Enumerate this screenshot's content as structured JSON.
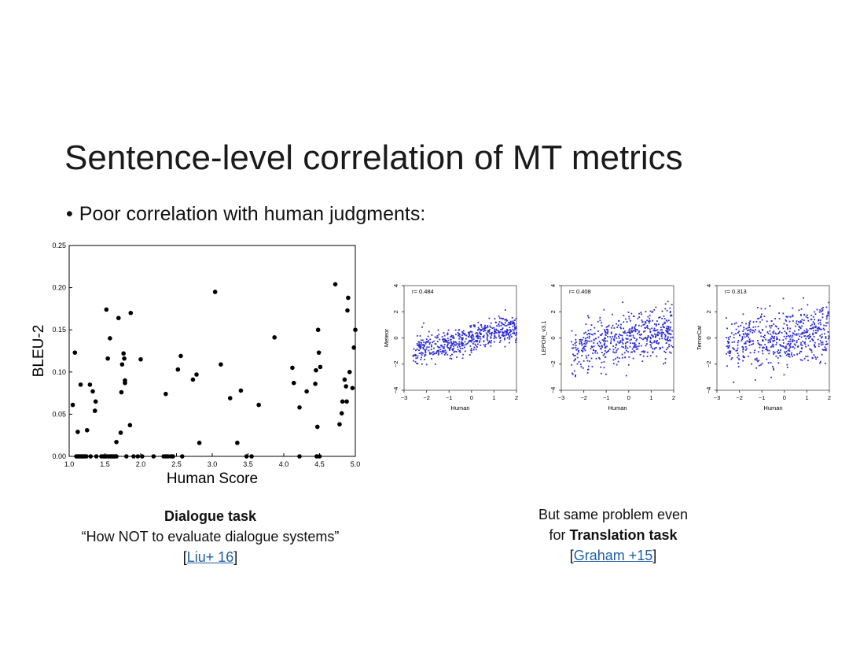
{
  "slide": {
    "title": "Sentence-level correlation of MT metrics",
    "bullet": "Poor correlation with human judgments:"
  },
  "captions": {
    "left": {
      "bold": "Dialogue task",
      "quote": "“How NOT to evaluate dialogue systems”",
      "ref_open": "[",
      "ref_link": "Liu+ 16",
      "ref_close": "]"
    },
    "right": {
      "line1": "But same problem even",
      "line2_prefix": "for ",
      "line2_bold": "Translation task",
      "ref_open": "[",
      "ref_link": "Graham +15",
      "ref_close": "]"
    }
  },
  "chart_data": [
    {
      "type": "scatter",
      "title": "",
      "xlabel": "Human Score",
      "ylabel": "BLEU-2",
      "xlim": [
        1.0,
        5.0
      ],
      "ylim": [
        0.0,
        0.25
      ],
      "xticks": [
        "1.0",
        "1.5",
        "2.0",
        "2.5",
        "3.0",
        "3.5",
        "4.0",
        "4.5",
        "5.0"
      ],
      "yticks": [
        "0.00",
        "0.05",
        "0.10",
        "0.15",
        "0.20",
        "0.25"
      ],
      "color": "#000000",
      "points": [
        [
          1.05,
          0.061
        ],
        [
          1.08,
          0.123
        ],
        [
          1.12,
          0.029
        ],
        [
          1.16,
          0.085
        ],
        [
          1.25,
          0.031
        ],
        [
          1.29,
          0.085
        ],
        [
          1.33,
          0.077
        ],
        [
          1.36,
          0.054
        ],
        [
          1.37,
          0.065
        ],
        [
          1.52,
          0.174
        ],
        [
          1.54,
          0.116
        ],
        [
          1.57,
          0.14
        ],
        [
          1.66,
          0.017
        ],
        [
          1.69,
          0.164
        ],
        [
          1.72,
          0.028
        ],
        [
          1.73,
          0.076
        ],
        [
          1.74,
          0.109
        ],
        [
          1.76,
          0.122
        ],
        [
          1.77,
          0.116
        ],
        [
          1.78,
          0.09
        ],
        [
          1.78,
          0.087
        ],
        [
          1.85,
          0.037
        ],
        [
          1.86,
          0.17
        ],
        [
          2.0,
          0.115
        ],
        [
          2.35,
          0.074
        ],
        [
          2.52,
          0.103
        ],
        [
          2.56,
          0.119
        ],
        [
          2.73,
          0.091
        ],
        [
          2.78,
          0.097
        ],
        [
          2.82,
          0.016
        ],
        [
          3.04,
          0.195
        ],
        [
          3.12,
          0.109
        ],
        [
          3.25,
          0.069
        ],
        [
          3.35,
          0.016
        ],
        [
          3.4,
          0.078
        ],
        [
          3.65,
          0.061
        ],
        [
          3.87,
          0.141
        ],
        [
          4.12,
          0.105
        ],
        [
          4.14,
          0.087
        ],
        [
          4.22,
          0.058
        ],
        [
          4.32,
          0.077
        ],
        [
          4.44,
          0.086
        ],
        [
          4.45,
          0.102
        ],
        [
          4.47,
          0.035
        ],
        [
          4.48,
          0.15
        ],
        [
          4.49,
          0.123
        ],
        [
          4.51,
          0.106
        ],
        [
          4.72,
          0.204
        ],
        [
          4.78,
          0.038
        ],
        [
          4.81,
          0.051
        ],
        [
          4.82,
          0.065
        ],
        [
          4.85,
          0.091
        ],
        [
          4.87,
          0.083
        ],
        [
          4.88,
          0.065
        ],
        [
          4.89,
          0.173
        ],
        [
          4.9,
          0.188
        ],
        [
          4.92,
          0.1
        ],
        [
          4.96,
          0.081
        ],
        [
          4.98,
          0.129
        ],
        [
          5.0,
          0.15
        ],
        [
          1.1,
          0.0
        ],
        [
          1.12,
          0.0
        ],
        [
          1.14,
          0.0
        ],
        [
          1.16,
          0.0
        ],
        [
          1.18,
          0.0
        ],
        [
          1.2,
          0.0
        ],
        [
          1.22,
          0.0
        ],
        [
          1.24,
          0.0
        ],
        [
          1.3,
          0.0
        ],
        [
          1.38,
          0.0
        ],
        [
          1.45,
          0.0
        ],
        [
          1.48,
          0.0
        ],
        [
          1.5,
          0.0
        ],
        [
          1.52,
          0.0
        ],
        [
          1.55,
          0.0
        ],
        [
          1.58,
          0.0
        ],
        [
          1.6,
          0.0
        ],
        [
          1.62,
          0.0
        ],
        [
          1.64,
          0.0
        ],
        [
          1.66,
          0.0
        ],
        [
          1.8,
          0.0
        ],
        [
          1.9,
          0.0
        ],
        [
          1.96,
          0.0
        ],
        [
          2.02,
          0.0
        ],
        [
          2.18,
          0.0
        ],
        [
          2.32,
          0.0
        ],
        [
          2.35,
          0.0
        ],
        [
          2.38,
          0.0
        ],
        [
          2.42,
          0.0
        ],
        [
          2.45,
          0.0
        ],
        [
          2.58,
          0.0
        ],
        [
          3.48,
          0.0
        ],
        [
          3.55,
          0.0
        ],
        [
          4.22,
          0.0
        ],
        [
          4.46,
          0.0
        ],
        [
          4.5,
          0.0
        ]
      ]
    },
    {
      "type": "scatter",
      "annotation": "r= 0.484",
      "xlabel": "Human",
      "ylabel": "Meteor",
      "xlim": [
        -3,
        2
      ],
      "ylim": [
        -4,
        4
      ],
      "xticks": [
        "-3",
        "-2",
        "-1",
        "0",
        "1",
        "2"
      ],
      "yticks": [
        "-4",
        "-2",
        "0",
        "2",
        "4"
      ],
      "color": "#2b2bd6",
      "n_points": 560,
      "r": 0.484,
      "seed": 11,
      "spread": 0.55,
      "x_range": [
        -2.6,
        2.0
      ]
    },
    {
      "type": "scatter",
      "annotation": "r= 0.408",
      "xlabel": "Human",
      "ylabel": "LEPOR_v3.1",
      "xlim": [
        -3,
        2
      ],
      "ylim": [
        -4,
        4
      ],
      "xticks": [
        "-3",
        "-2",
        "-1",
        "0",
        "1",
        "2"
      ],
      "yticks": [
        "-4",
        "-2",
        "0",
        "2",
        "4"
      ],
      "color": "#2b2bd6",
      "n_points": 560,
      "r": 0.408,
      "seed": 29,
      "spread": 0.95,
      "x_range": [
        -2.6,
        2.0
      ]
    },
    {
      "type": "scatter",
      "annotation": "r= 0.313",
      "xlabel": "Human",
      "ylabel": "TerrorCat",
      "xlim": [
        -3,
        2
      ],
      "ylim": [
        -4,
        4
      ],
      "xticks": [
        "-3",
        "-2",
        "-1",
        "0",
        "1",
        "2"
      ],
      "yticks": [
        "-4",
        "-2",
        "0",
        "2",
        "4"
      ],
      "color": "#2b2bd6",
      "n_points": 560,
      "r": 0.313,
      "seed": 47,
      "spread": 1.05,
      "x_range": [
        -2.6,
        2.0
      ]
    }
  ]
}
